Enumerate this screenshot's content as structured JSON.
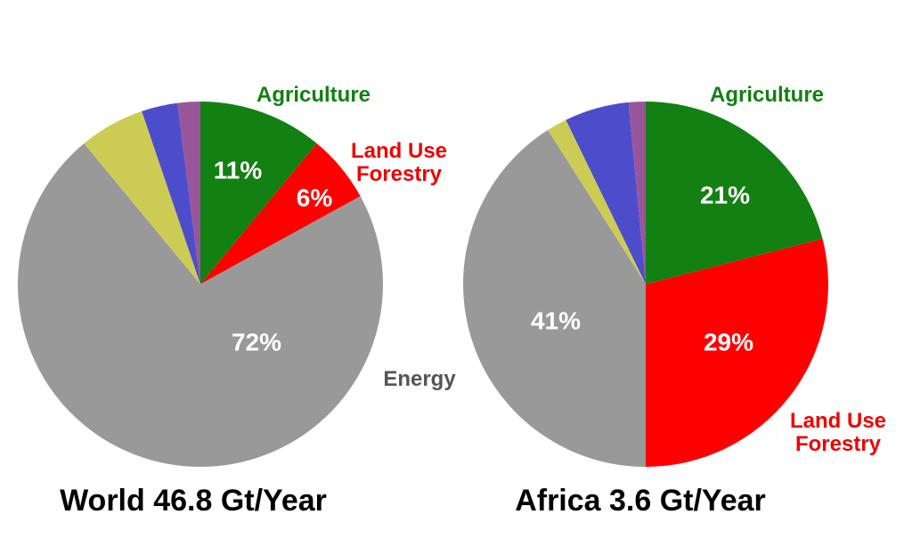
{
  "chart_data": [
    {
      "type": "pie",
      "title": "World 46.8 Gt/Year",
      "start_angle_deg": 0,
      "direction": "clockwise",
      "slices": [
        {
          "name": "Agriculture",
          "value": 11,
          "data_label": "11%",
          "color": "#128012",
          "label_color": "#128012"
        },
        {
          "name": "Land Use\nForestry",
          "value": 6,
          "data_label": "6%",
          "color": "#ff0000",
          "label_color": "#ee0000"
        },
        {
          "name": "Energy",
          "value": 72,
          "data_label": "72%",
          "color": "#999999",
          "label_color": "#555555"
        },
        {
          "name": "",
          "value": 5.8,
          "data_label": "",
          "color": "#cccc55"
        },
        {
          "name": "",
          "value": 3.2,
          "data_label": "",
          "color": "#4d4dcc"
        },
        {
          "name": "",
          "value": 2.0,
          "data_label": "",
          "color": "#99559a"
        }
      ]
    },
    {
      "type": "pie",
      "title": "Africa 3.6 Gt/Year",
      "start_angle_deg": 0,
      "direction": "clockwise",
      "slices": [
        {
          "name": "Agriculture",
          "value": 21,
          "data_label": "21%",
          "color": "#128012",
          "label_color": "#128012"
        },
        {
          "name": "Land Use\nForestry",
          "value": 29,
          "data_label": "29%",
          "color": "#ff0000",
          "label_color": "#ee0000"
        },
        {
          "name": "",
          "value": 41,
          "data_label": "41%",
          "color": "#999999"
        },
        {
          "name": "",
          "value": 1.8,
          "data_label": "",
          "color": "#cccc55"
        },
        {
          "name": "",
          "value": 5.7,
          "data_label": "",
          "color": "#4d4dcc"
        },
        {
          "name": "",
          "value": 1.5,
          "data_label": "",
          "color": "#99559a"
        }
      ]
    }
  ]
}
